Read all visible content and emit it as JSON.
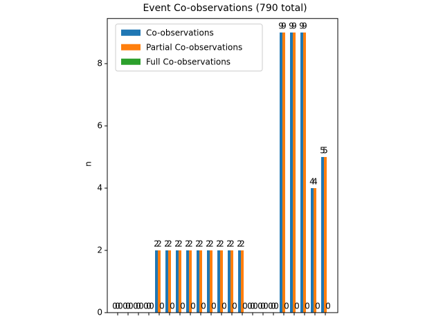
{
  "chart_data": {
    "type": "bar",
    "title": "Event Co-observations (790 total)",
    "ylabel": "n",
    "categories": [
      null,
      null,
      null,
      null,
      null,
      null,
      null,
      null,
      null,
      null,
      null,
      null,
      null,
      null,
      null,
      null,
      null,
      null,
      null,
      null,
      null
    ],
    "series": [
      {
        "name": "Co-observations",
        "color": "#1f77b4",
        "values": [
          0,
          0,
          0,
          0,
          2,
          2,
          2,
          2,
          2,
          2,
          2,
          2,
          2,
          0,
          0,
          0,
          9,
          9,
          9,
          4,
          5
        ]
      },
      {
        "name": "Partial Co-observations",
        "color": "#ff7f0e",
        "values": [
          0,
          0,
          0,
          0,
          2,
          2,
          2,
          2,
          2,
          2,
          2,
          2,
          2,
          0,
          0,
          0,
          9,
          9,
          9,
          4,
          5
        ]
      },
      {
        "name": "Full Co-observations",
        "color": "#2ca02c",
        "values": [
          0,
          0,
          0,
          0,
          0,
          0,
          0,
          0,
          0,
          0,
          0,
          0,
          0,
          0,
          0,
          0,
          0,
          0,
          0,
          0,
          0
        ]
      }
    ],
    "ylim": [
      0,
      9.45
    ],
    "yticks": [
      0,
      2,
      4,
      6,
      8
    ],
    "legend": "upper left"
  }
}
